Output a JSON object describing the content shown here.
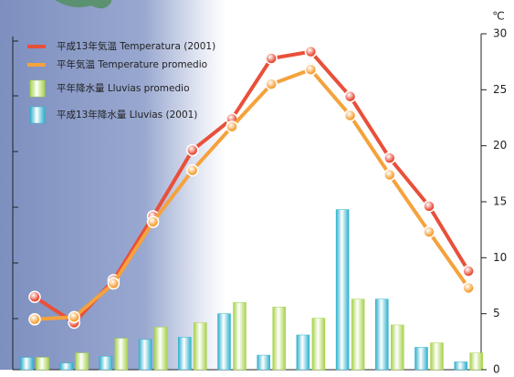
{
  "chart_data": {
    "type": "bar",
    "y_unit": "℃",
    "categories": [
      null,
      null,
      null,
      null,
      null,
      null,
      null,
      null,
      null,
      null,
      null,
      null
    ],
    "ylim": [
      0,
      30
    ],
    "yticks": [
      0,
      5,
      10,
      15,
      20,
      25,
      30
    ],
    "series": [
      {
        "name": "平成13年気温 Temperatura (2001)",
        "type": "line",
        "color": "#e8503a",
        "values": [
          6.5,
          4.2,
          8.0,
          13.7,
          19.6,
          22.4,
          27.8,
          28.4,
          24.4,
          18.9,
          14.6,
          8.8
        ]
      },
      {
        "name": "平年気温 Temperature promedio",
        "type": "line",
        "color": "#f5a23c",
        "values": [
          4.5,
          4.7,
          7.7,
          13.2,
          17.8,
          21.7,
          25.5,
          26.8,
          22.7,
          17.4,
          12.3,
          7.3
        ]
      },
      {
        "name": "平年降水量 Lluvias promedio",
        "type": "bar",
        "color": "#a6d24a",
        "values": [
          1.1,
          1.5,
          2.8,
          3.8,
          4.2,
          6.0,
          5.6,
          4.6,
          6.3,
          4.0,
          2.4,
          1.5
        ]
      },
      {
        "name": "平成13年降水量 Lluvias (2001)",
        "type": "bar",
        "color": "#2eb0cc",
        "values": [
          1.1,
          0.6,
          1.2,
          2.7,
          2.9,
          5.0,
          1.3,
          3.1,
          14.3,
          6.3,
          2.0,
          0.7
        ]
      }
    ]
  }
}
